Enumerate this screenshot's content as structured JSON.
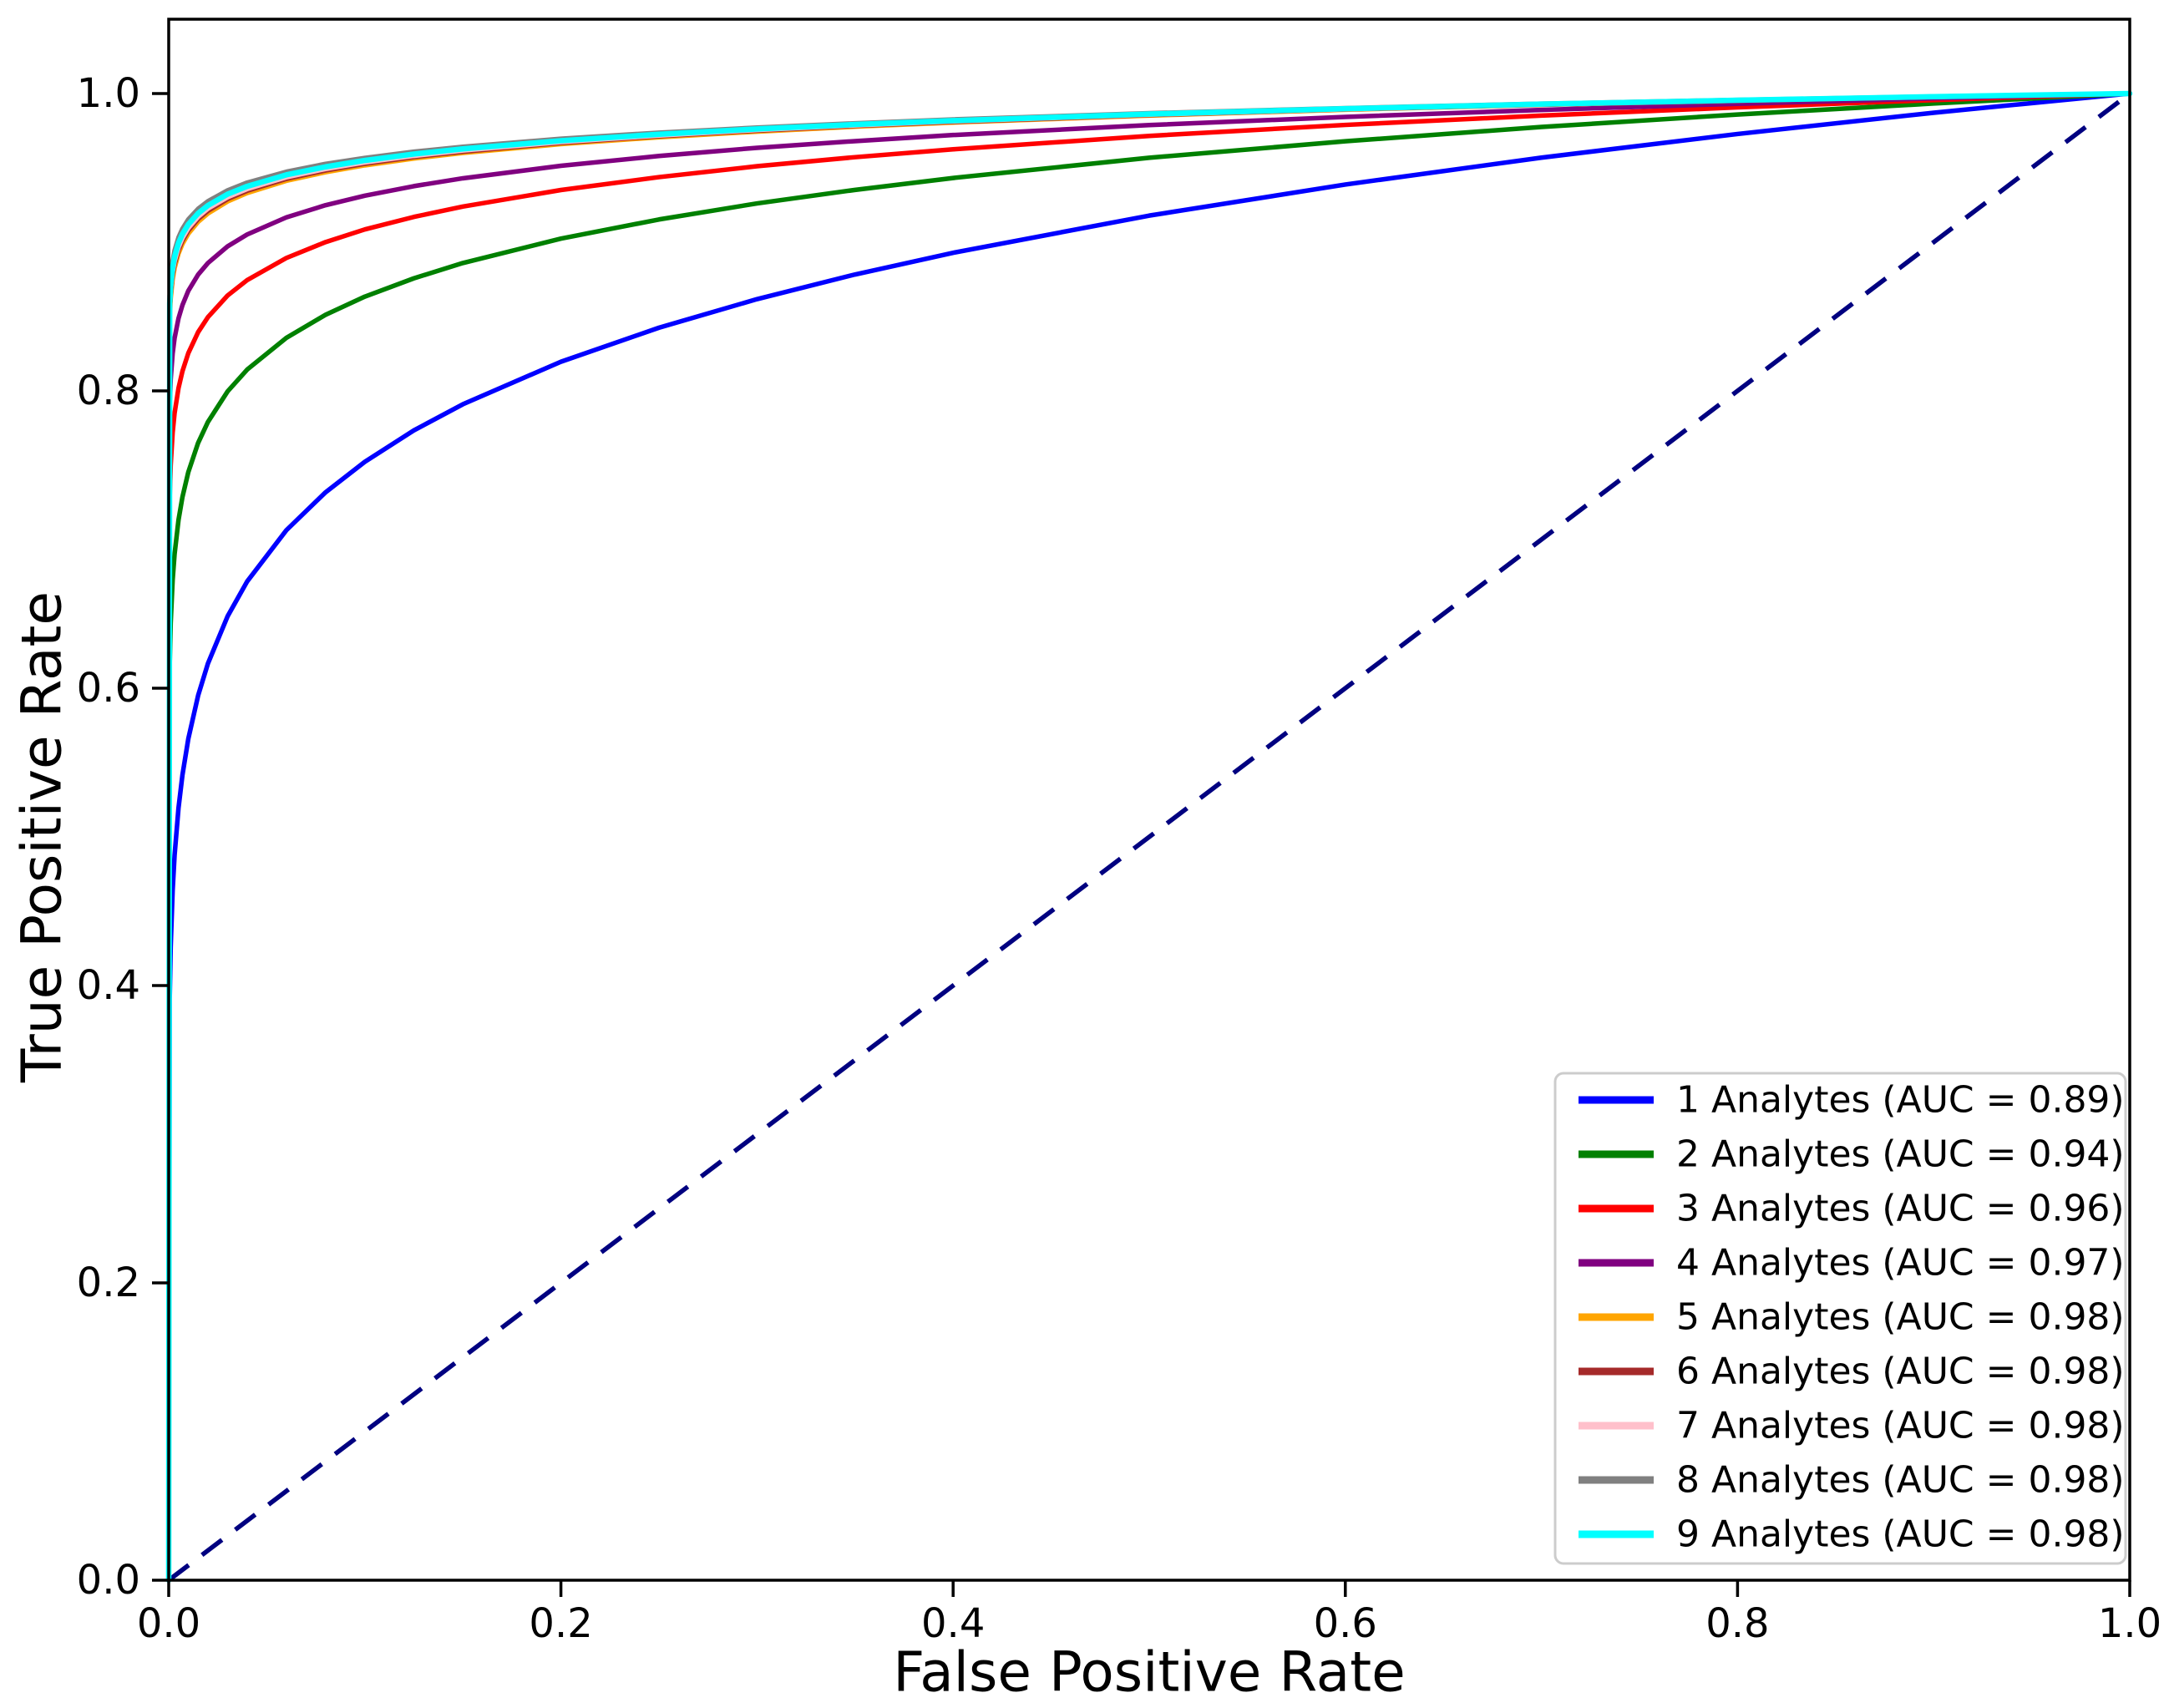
{
  "figure": {
    "background_color": "#ffffff",
    "axis_color": "#000000",
    "legend_border_color": "#cccccc"
  },
  "chart_data": {
    "type": "line",
    "title": "",
    "xlabel": "False Positive Rate",
    "ylabel": "True Positive Rate",
    "xlim": [
      0.0,
      1.0
    ],
    "ylim": [
      0.0,
      1.05
    ],
    "grid": false,
    "legend_position": "lower right",
    "x_tick_labels": [
      "0.0",
      "0.2",
      "0.4",
      "0.6",
      "0.8",
      "1.0"
    ],
    "x_tick_values": [
      0.0,
      0.2,
      0.4,
      0.6,
      0.8,
      1.0
    ],
    "y_tick_labels": [
      "0.0",
      "0.2",
      "0.4",
      "0.6",
      "0.8",
      "1.0"
    ],
    "y_tick_values": [
      0.0,
      0.2,
      0.4,
      0.6,
      0.8,
      1.0
    ],
    "reference_line": {
      "description": "chance diagonal",
      "style": "dashed",
      "color": "#000080",
      "from": [
        0.0,
        0.0
      ],
      "to": [
        1.0,
        1.0
      ]
    },
    "x_sample": [
      0,
      0.0005,
      0.001,
      0.002,
      0.003,
      0.005,
      0.007,
      0.01,
      0.015,
      0.02,
      0.03,
      0.04,
      0.06,
      0.08,
      0.1,
      0.125,
      0.15,
      0.2,
      0.25,
      0.3,
      0.35,
      0.4,
      0.5,
      0.6,
      0.7,
      0.8,
      0.9,
      1.0
    ],
    "series": [
      {
        "name": "1 Analytes",
        "auc": 0.89,
        "label": "1 Analytes (AUC = 0.89)",
        "color": "#0000ff",
        "width": 5.5,
        "y": [
          0,
          0.3908,
          0.4258,
          0.4639,
          0.4877,
          0.5195,
          0.5416,
          0.566,
          0.5951,
          0.6166,
          0.6483,
          0.6718,
          0.7063,
          0.7318,
          0.7523,
          0.7734,
          0.791,
          0.8196,
          0.8425,
          0.8617,
          0.8783,
          0.8929,
          0.9179,
          0.9388,
          0.9569,
          0.9728,
          0.9871,
          1.0
        ]
      },
      {
        "name": "2 Analytes",
        "auc": 0.94,
        "label": "2 Analytes (AUC = 0.94)",
        "color": "#008000",
        "width": 5.5,
        "y": [
          0,
          0.6157,
          0.6436,
          0.6727,
          0.6903,
          0.7132,
          0.7286,
          0.7454,
          0.765,
          0.7791,
          0.7996,
          0.8143,
          0.8357,
          0.8512,
          0.8634,
          0.8757,
          0.886,
          0.9024,
          0.9153,
          0.9261,
          0.9352,
          0.9432,
          0.9568,
          0.9679,
          0.9775,
          0.9859,
          0.9933,
          1.0
        ]
      },
      {
        "name": "3 Analytes",
        "auc": 0.96,
        "label": "3 Analytes (AUC = 0.96)",
        "color": "#ff0000",
        "width": 5.5,
        "y": [
          0,
          0.7285,
          0.7499,
          0.7719,
          0.7851,
          0.8019,
          0.8132,
          0.8254,
          0.8395,
          0.8496,
          0.8641,
          0.8745,
          0.8894,
          0.9001,
          0.9086,
          0.917,
          0.924,
          0.9351,
          0.9438,
          0.9511,
          0.9572,
          0.9625,
          0.9715,
          0.9789,
          0.9852,
          0.9907,
          0.9956,
          1.0
        ]
      },
      {
        "name": "4 Analytes",
        "auc": 0.97,
        "label": "4 Analytes (AUC = 0.97)",
        "color": "#800080",
        "width": 5.5,
        "y": [
          0,
          0.7905,
          0.8077,
          0.8251,
          0.8355,
          0.8488,
          0.8577,
          0.8673,
          0.8782,
          0.886,
          0.8972,
          0.9052,
          0.9167,
          0.9249,
          0.9313,
          0.9377,
          0.943,
          0.9514,
          0.958,
          0.9635,
          0.968,
          0.9721,
          0.9788,
          0.9843,
          0.989,
          0.9931,
          0.9967,
          1.0
        ]
      },
      {
        "name": "5 Analytes",
        "auc": 0.98,
        "label": "5 Analytes (AUC = 0.98)",
        "color": "#ffa500",
        "width": 5.5,
        "y": [
          0,
          0.8492,
          0.862,
          0.8749,
          0.8826,
          0.8923,
          0.8988,
          0.9057,
          0.9137,
          0.9193,
          0.9274,
          0.9331,
          0.9413,
          0.9471,
          0.9517,
          0.9563,
          0.96,
          0.966,
          0.9706,
          0.9744,
          0.9777,
          0.9805,
          0.9852,
          0.9891,
          0.9924,
          0.9952,
          0.9977,
          1.0
        ]
      },
      {
        "name": "6 Analytes",
        "auc": 0.98,
        "label": "6 Analytes (AUC = 0.98)",
        "color": "#a52a2a",
        "width": 5.5,
        "y": [
          0,
          0.8525,
          0.865,
          0.8776,
          0.8852,
          0.8947,
          0.901,
          0.9078,
          0.9156,
          0.9211,
          0.929,
          0.9346,
          0.9426,
          0.9483,
          0.9528,
          0.9573,
          0.9609,
          0.9668,
          0.9713,
          0.975,
          0.9782,
          0.9809,
          0.9855,
          0.9893,
          0.9925,
          0.9953,
          0.9978,
          1.0
        ]
      },
      {
        "name": "7 Analytes",
        "auc": 0.98,
        "label": "7 Analytes (AUC = 0.98)",
        "color": "#ffc0cb",
        "width": 5.5,
        "y": [
          0,
          0.8551,
          0.8674,
          0.8798,
          0.8872,
          0.8966,
          0.9028,
          0.9095,
          0.9171,
          0.9226,
          0.9303,
          0.9358,
          0.9437,
          0.9493,
          0.9537,
          0.9581,
          0.9617,
          0.9674,
          0.9718,
          0.9755,
          0.9786,
          0.9813,
          0.9858,
          0.9895,
          0.9927,
          0.9954,
          0.9978,
          1.0
        ]
      },
      {
        "name": "8 Analytes",
        "auc": 0.98,
        "label": "8 Analytes (AUC = 0.98)",
        "color": "#808080",
        "width": 5.5,
        "y": [
          0,
          0.8642,
          0.8758,
          0.8875,
          0.8945,
          0.9033,
          0.9091,
          0.9154,
          0.9225,
          0.9276,
          0.9349,
          0.9401,
          0.9474,
          0.9527,
          0.9567,
          0.9609,
          0.9642,
          0.9696,
          0.9737,
          0.9771,
          0.98,
          0.9826,
          0.9868,
          0.9902,
          0.9932,
          0.9957,
          0.998,
          1.0
        ]
      },
      {
        "name": "9 Analytes",
        "auc": 0.98,
        "label": "9 Analytes (AUC = 0.98)",
        "color": "#00ffff",
        "width": 6.5,
        "y": [
          0,
          0.859,
          0.871,
          0.8831,
          0.8903,
          0.8995,
          0.9055,
          0.912,
          0.9194,
          0.9247,
          0.9323,
          0.9376,
          0.9453,
          0.9507,
          0.955,
          0.9593,
          0.9628,
          0.9683,
          0.9726,
          0.9762,
          0.9792,
          0.9818,
          0.9862,
          0.9898,
          0.9929,
          0.9955,
          0.9979,
          1.0
        ]
      }
    ]
  }
}
